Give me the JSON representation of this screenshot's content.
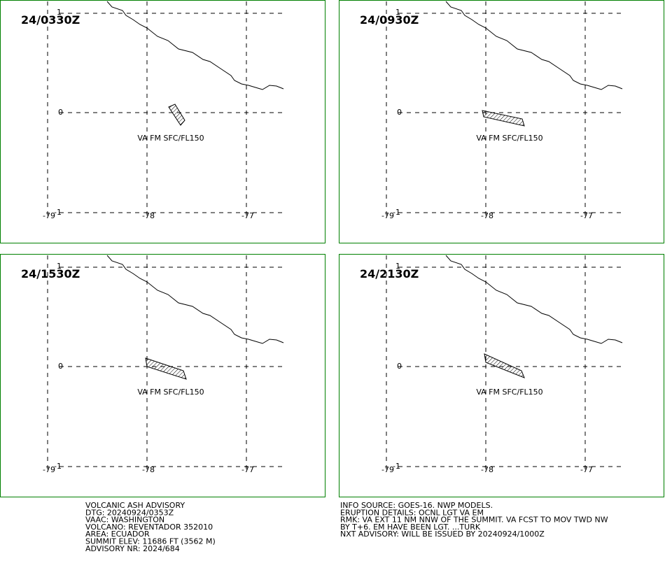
{
  "panels": [
    {
      "time": "24/0330Z",
      "label": "VA FM SFC/FL150"
    },
    {
      "time": "24/0930Z",
      "label": "VA FM SFC/FL150"
    },
    {
      "time": "24/1530Z",
      "label": "VA FM SFC/FL150"
    },
    {
      "time": "24/2130Z",
      "label": "VA FM SFC/FL150"
    }
  ],
  "grid": {
    "lat_labels": [
      "1",
      "0",
      "-1"
    ],
    "lon_labels": [
      "-79",
      "-78",
      "-77"
    ]
  },
  "footer": {
    "left": [
      "VOLCANIC ASH ADVISORY",
      "DTG: 20240924/0353Z",
      "VAAC: WASHINGTON",
      "VOLCANO: REVENTADOR 352010",
      "AREA: ECUADOR",
      "SUMMIT ELEV: 11686 FT (3562 M)",
      "ADVISORY NR: 2024/684"
    ],
    "right": [
      "INFO SOURCE: GOES-16. NWP MODELS.",
      "ERUPTION DETAILS: OCNL LGT VA EM",
      "RMK: VA EXT 11 NM NNW OF THE SUMMIT. VA FCST TO MOV TWD NW",
      "BY T+6. EM HAVE BEEN LGT. ...TURK",
      "NXT ADVISORY: WILL BE ISSUED BY 20240924/1000Z"
    ]
  }
}
